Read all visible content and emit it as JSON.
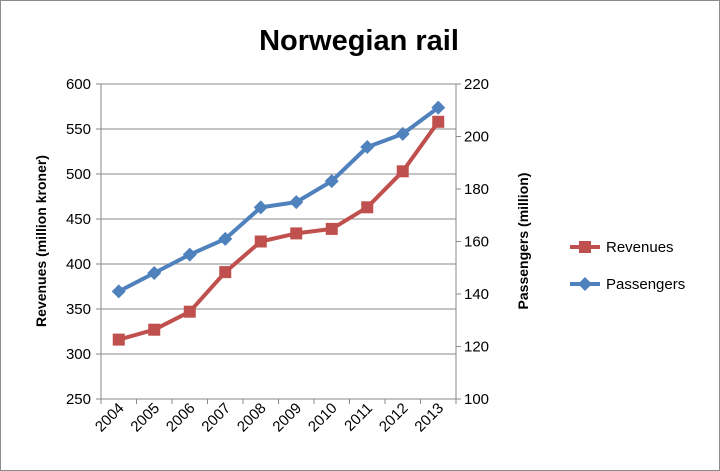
{
  "chart_data": {
    "type": "line",
    "title": "Norwegian rail",
    "categories": [
      "2004",
      "2005",
      "2006",
      "2007",
      "2008",
      "2009",
      "2010",
      "2011",
      "2012",
      "2013"
    ],
    "series": [
      {
        "name": "Revenues",
        "axis": "left",
        "color": "#c0504d",
        "marker": "square",
        "values": [
          316,
          327,
          347,
          391,
          425,
          434,
          439,
          463,
          503,
          558
        ]
      },
      {
        "name": "Passengers",
        "axis": "right",
        "color": "#4f81bd",
        "marker": "diamond",
        "values": [
          141,
          148,
          155,
          161,
          173,
          175,
          183,
          196,
          201,
          211
        ]
      }
    ],
    "ylabel_left": "Revenues (million kroner)",
    "ylabel_right": "Passengers (million)",
    "ylim_left": [
      250,
      600
    ],
    "ylim_right": [
      100,
      220
    ],
    "yticks_left": [
      "250",
      "300",
      "350",
      "400",
      "450",
      "500",
      "550",
      "600"
    ],
    "yticks_right": [
      "100",
      "120",
      "140",
      "160",
      "180",
      "200",
      "220"
    ],
    "grid": true,
    "legend_position": "right"
  }
}
